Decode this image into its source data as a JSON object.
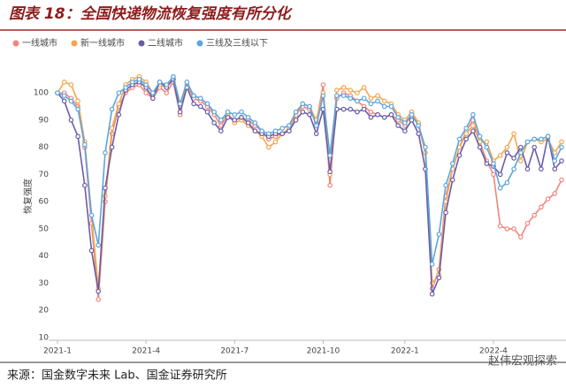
{
  "title": "图表 18：全国快递物流恢复强度有所分化",
  "chart_data": {
    "type": "line",
    "y_label": "恢复强度",
    "categories": [
      "2021-1",
      null,
      null,
      null,
      null,
      null,
      null,
      null,
      null,
      null,
      null,
      null,
      null,
      "2021-4",
      null,
      null,
      null,
      null,
      null,
      null,
      null,
      null,
      null,
      null,
      null,
      null,
      "2021-7",
      null,
      null,
      null,
      null,
      null,
      null,
      null,
      null,
      null,
      null,
      null,
      null,
      "2021-10",
      null,
      null,
      null,
      null,
      null,
      null,
      null,
      null,
      null,
      null,
      null,
      "2022-1",
      null,
      null,
      null,
      null,
      null,
      null,
      null,
      null,
      null,
      null,
      null,
      null,
      "2022-4",
      null,
      null,
      null,
      null,
      null,
      null,
      null,
      null,
      null,
      null
    ],
    "series": [
      {
        "name": "一线城市",
        "color": "#f2857c",
        "values": [
          100,
          100,
          98,
          95,
          80,
          52,
          24,
          60,
          85,
          95,
          100,
          102,
          103,
          100,
          98,
          102,
          100,
          104,
          92,
          103,
          98,
          97,
          95,
          92,
          88,
          92,
          90,
          91,
          90,
          88,
          86,
          83,
          84,
          85,
          86,
          92,
          95,
          94,
          89,
          103,
          66,
          98,
          100,
          99,
          97,
          95,
          93,
          92,
          91,
          92,
          90,
          88,
          92,
          88,
          78,
          28,
          35,
          62,
          72,
          80,
          86,
          90,
          82,
          75,
          70,
          51,
          50,
          50,
          47,
          52,
          55,
          58,
          61,
          63,
          68
        ]
      },
      {
        "name": "新一线城市",
        "color": "#f5a54e",
        "values": [
          100,
          104,
          103,
          97,
          82,
          55,
          28,
          62,
          87,
          96,
          103,
          105,
          106,
          104,
          100,
          103,
          102,
          106,
          95,
          103,
          99,
          98,
          96,
          93,
          90,
          92,
          89,
          90,
          88,
          86,
          84,
          80,
          82,
          85,
          87,
          92,
          96,
          95,
          90,
          100,
          70,
          101,
          102,
          101,
          100,
          102,
          98,
          99,
          97,
          96,
          92,
          90,
          93,
          89,
          78,
          30,
          33,
          60,
          72,
          80,
          85,
          88,
          82,
          82,
          75,
          77,
          80,
          85,
          75,
          82,
          83,
          82,
          83,
          78,
          82
        ]
      },
      {
        "name": "二线城市",
        "color": "#6a5ca8",
        "values": [
          100,
          97,
          90,
          84,
          66,
          42,
          27,
          65,
          80,
          92,
          101,
          103,
          104,
          102,
          98,
          104,
          102,
          105,
          93,
          102,
          96,
          95,
          93,
          89,
          86,
          91,
          90,
          91,
          89,
          86,
          85,
          84,
          85,
          85,
          86,
          90,
          93,
          92,
          85,
          94,
          71,
          94,
          94,
          94,
          93,
          94,
          91,
          92,
          91,
          92,
          88,
          86,
          90,
          85,
          72,
          26,
          32,
          56,
          68,
          77,
          83,
          86,
          80,
          74,
          73,
          70,
          78,
          76,
          80,
          72,
          80,
          72,
          84,
          72,
          75
        ]
      },
      {
        "name": "三线及三线以下",
        "color": "#5ba6de",
        "values": [
          100,
          99,
          97,
          94,
          81,
          55,
          44,
          78,
          94,
          100,
          102,
          104,
          105,
          103,
          100,
          104,
          103,
          106,
          96,
          104,
          99,
          98,
          96,
          93,
          90,
          93,
          92,
          93,
          91,
          89,
          86,
          85,
          86,
          87,
          88,
          93,
          96,
          95,
          88,
          99,
          77,
          99,
          99,
          98,
          97,
          98,
          96,
          97,
          95,
          95,
          91,
          89,
          92,
          88,
          80,
          37,
          48,
          66,
          74,
          83,
          87,
          92,
          84,
          80,
          74,
          65,
          67,
          72,
          78,
          82,
          83,
          83,
          84,
          75,
          80
        ]
      }
    ],
    "ylim": [
      9,
      115
    ],
    "yticks": [
      10,
      20,
      30,
      40,
      50,
      60,
      70,
      80,
      90,
      100
    ],
    "grid": false
  },
  "source": "来源：国金数字未来 Lab、国金证券研究所",
  "watermark": "赵伟宏观探索"
}
